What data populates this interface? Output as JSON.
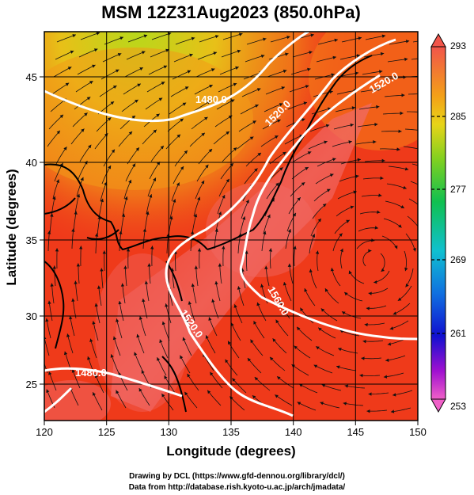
{
  "title": "MSM 12Z31Aug2023 (850.0hPa)",
  "xaxis": {
    "label": "Longitude (degrees)",
    "ticks": [
      "120",
      "125",
      "130",
      "135",
      "140",
      "145",
      "150"
    ]
  },
  "yaxis": {
    "label": "Latitude  (degrees)",
    "ticks": [
      "25",
      "30",
      "35",
      "40",
      "45"
    ]
  },
  "colorbar": {
    "labels": [
      "293",
      "285",
      "277",
      "269",
      "261",
      "253"
    ]
  },
  "contour_labels": [
    "1480.0",
    "1520.0",
    "1560.0",
    "1520.0",
    "1560.0",
    "1520.0",
    "1480.0"
  ],
  "credits": {
    "line1": "Drawing by DCL (https://www.gfd-dennou.org/library/dcl/)",
    "line2": "Data from http://database.rish.kyoto-u.ac.jp/arch/jmadata/"
  },
  "colors": {
    "warm": "#ef2a1a",
    "hot": "#f0605a",
    "mid": "#f3a018",
    "cool": "#b8d81a",
    "contour": "#ffffff"
  }
}
